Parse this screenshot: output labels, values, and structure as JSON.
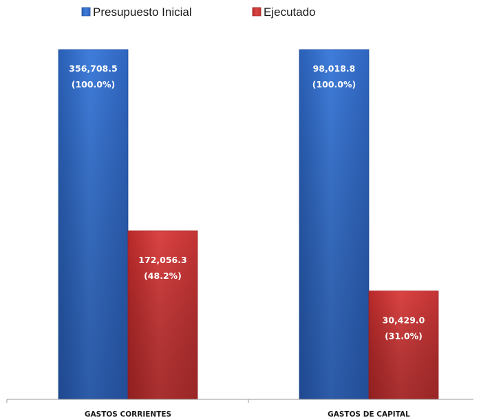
{
  "chart_data": {
    "type": "bar",
    "categories": [
      "GASTOS CORRIENTES",
      "GASTOS DE CAPITAL"
    ],
    "series": [
      {
        "name": "Presupuesto Inicial",
        "color": "#3b76d1",
        "values": [
          356708.5,
          98018.8
        ],
        "value_labels": [
          "356,708.5",
          "98,018.8"
        ],
        "pct_labels": [
          "(100.0%)",
          "(100.0%)"
        ],
        "pct": [
          100.0,
          100.0
        ]
      },
      {
        "name": "Ejecutado",
        "color": "#d43a3a",
        "values": [
          172056.3,
          30429.0
        ],
        "value_labels": [
          "172,056.3",
          "30,429.0"
        ],
        "pct_labels": [
          "(48.2%)",
          "(31.0%)"
        ],
        "pct": [
          48.2,
          31.0
        ]
      }
    ],
    "title": "",
    "xlabel": "",
    "ylabel": "",
    "legend": "top-center",
    "grid": false,
    "note": "Each category group is scaled independently; bar heights show the percentage of the initial budget."
  }
}
